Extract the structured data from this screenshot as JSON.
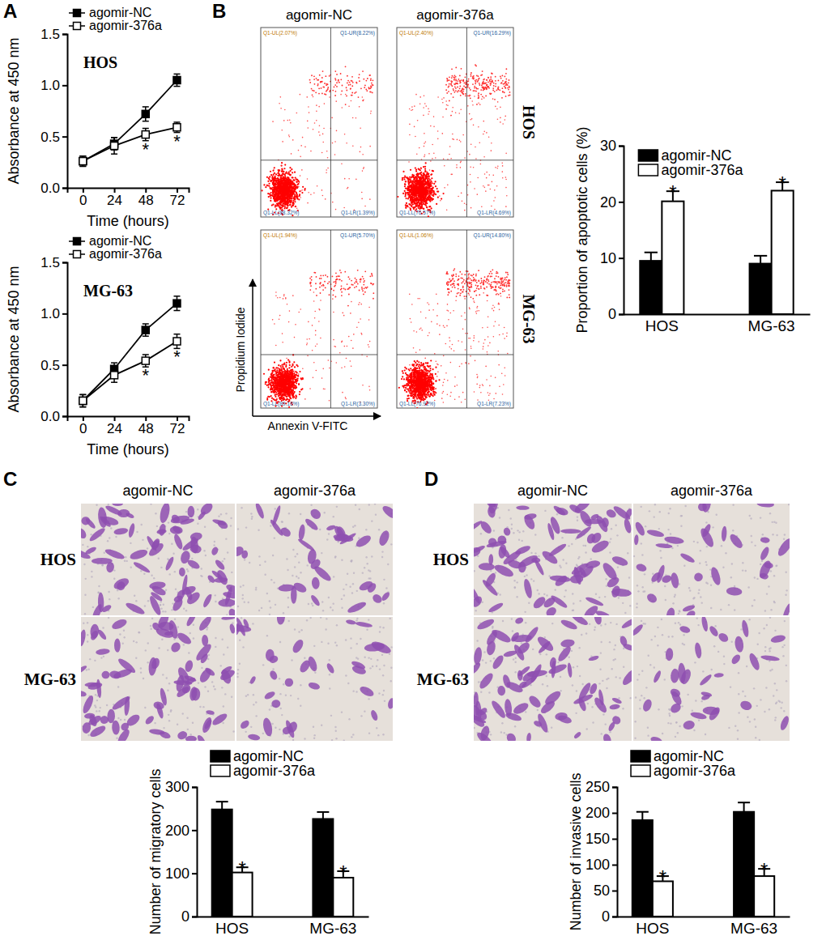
{
  "chart_data": [
    {
      "type": "line",
      "panel": "A",
      "title": "HOS",
      "x_label": "Time (hours)",
      "y_label": "Absorbance at 450 nm",
      "x": [
        0,
        24,
        48,
        72
      ],
      "xlim": [
        -12,
        81
      ],
      "xticks": [
        0,
        24,
        48,
        72
      ],
      "ylim": [
        0,
        1.5
      ],
      "yticks": [
        {
          "value": 0,
          "label": "0.0"
        },
        {
          "value": 0.5,
          "label": "0.5"
        },
        {
          "value": 1,
          "label": "1.0"
        },
        {
          "value": 1.5,
          "label": "1.5"
        }
      ],
      "legend": "upper left",
      "series": [
        {
          "name": "agomir-NC",
          "color": "#000000",
          "marker": "filled-square",
          "values": [
            0.26,
            0.43,
            0.72,
            1.05
          ],
          "errors": [
            0.05,
            0.06,
            0.07,
            0.06
          ]
        },
        {
          "name": "agomir-376a",
          "color": "#000000",
          "marker": "open-square",
          "values": [
            0.26,
            0.41,
            0.52,
            0.59
          ],
          "errors": [
            0.05,
            0.08,
            0.06,
            0.05
          ]
        }
      ],
      "annotations": [
        {
          "text": "*",
          "series": 1,
          "index": 2
        },
        {
          "text": "*",
          "series": 1,
          "index": 3
        }
      ]
    },
    {
      "type": "line",
      "title": "MG-63",
      "x_label": "Time (hours)",
      "y_label": "Absorbance at 450 nm",
      "x": [
        0,
        24,
        48,
        72
      ],
      "xlim": [
        -12,
        81
      ],
      "xticks": [
        0,
        24,
        48,
        72
      ],
      "ylim": [
        0,
        1.5
      ],
      "yticks": [
        {
          "value": 0,
          "label": "0.0"
        },
        {
          "value": 0.5,
          "label": "0.5"
        },
        {
          "value": 1,
          "label": "1.0"
        },
        {
          "value": 1.5,
          "label": "1.5"
        }
      ],
      "legend": "upper left",
      "series": [
        {
          "name": "agomir-NC",
          "color": "#000000",
          "marker": "filled-square",
          "values": [
            0.15,
            0.46,
            0.84,
            1.1
          ],
          "errors": [
            0.06,
            0.06,
            0.06,
            0.07
          ]
        },
        {
          "name": "agomir-376a",
          "color": "#000000",
          "marker": "open-square",
          "values": [
            0.15,
            0.4,
            0.54,
            0.73
          ],
          "errors": [
            0.06,
            0.07,
            0.06,
            0.07
          ]
        }
      ],
      "annotations": [
        {
          "text": "*",
          "series": 1,
          "index": 2
        },
        {
          "text": "*",
          "series": 1,
          "index": 3
        }
      ]
    },
    {
      "type": "flow_cytometry",
      "panel": "B",
      "columns": [
        "agomir-NC",
        "agomir-376a"
      ],
      "rows": [
        "HOS",
        "MG-63"
      ],
      "x_label": "Annexin V-FITC",
      "y_label": "Propidium Iodide",
      "quadrant_labels": [
        [
          [
            "Q1-UL(2.07%)",
            "Q1-UR(8.22%)",
            "Q1-LL(88.32%)",
            "Q1-LR(1.39%)"
          ],
          [
            "Q1-UL(2.40%)",
            "Q1-UR(16.29%)",
            "Q1-LL(76.57%)",
            "Q1-LR(4.69%)"
          ]
        ],
        [
          [
            "Q1-UL(1.94%)",
            "Q1-UR(5.70%)",
            "Q1-LL(89.16%)",
            "Q1-LR(3.30%)"
          ],
          [
            "Q1-UL(1.06%)",
            "Q1-UR(14.80%)",
            "Q1-LL(76.92%)",
            "Q1-LR(7.23%)"
          ]
        ]
      ]
    },
    {
      "type": "bar",
      "y_label": "Proportion of apoptotic cells (%)",
      "categories": [
        "HOS",
        "MG-63"
      ],
      "ylim": [
        0,
        30
      ],
      "yticks": [
        0,
        10,
        20,
        30
      ],
      "legend": "upper left",
      "series": [
        {
          "name": "agomir-NC",
          "color": "#000000",
          "values": [
            9.5,
            9.0
          ],
          "errors": [
            1.5,
            1.4
          ]
        },
        {
          "name": "agomir-376a",
          "color": "#ffffff",
          "values": [
            20.1,
            22.0
          ],
          "errors": [
            1.8,
            1.5
          ]
        }
      ],
      "annotations": [
        {
          "text": "*",
          "series": 1,
          "index": 0
        },
        {
          "text": "*",
          "series": 1,
          "index": 1
        }
      ]
    },
    {
      "type": "micrograph",
      "panel": "C",
      "columns": [
        "agomir-NC",
        "agomir-376a"
      ],
      "rows": [
        "HOS",
        "MG-63"
      ]
    },
    {
      "type": "bar",
      "y_label": "Number of migratory cells",
      "categories": [
        "HOS",
        "MG-63"
      ],
      "ylim": [
        0,
        300
      ],
      "yticks": [
        0,
        100,
        200,
        300
      ],
      "legend": "upper left",
      "series": [
        {
          "name": "agomir-NC",
          "color": "#000000",
          "values": [
            248,
            226
          ],
          "errors": [
            18,
            16
          ]
        },
        {
          "name": "agomir-376a",
          "color": "#ffffff",
          "values": [
            102,
            90
          ],
          "errors": [
            12,
            15
          ]
        }
      ],
      "annotations": [
        {
          "text": "*",
          "series": 1,
          "index": 0
        },
        {
          "text": "*",
          "series": 1,
          "index": 1
        }
      ]
    },
    {
      "type": "micrograph",
      "panel": "D",
      "columns": [
        "agomir-NC",
        "agomir-376a"
      ],
      "rows": [
        "HOS",
        "MG-63"
      ]
    },
    {
      "type": "bar",
      "y_label": "Number of invasive cells",
      "categories": [
        "HOS",
        "MG-63"
      ],
      "ylim": [
        0,
        250
      ],
      "yticks": [
        0,
        50,
        100,
        150,
        200,
        250
      ],
      "legend": "upper left",
      "series": [
        {
          "name": "agomir-NC",
          "color": "#000000",
          "values": [
            186,
            202
          ],
          "errors": [
            16,
            18
          ]
        },
        {
          "name": "agomir-376a",
          "color": "#ffffff",
          "values": [
            68,
            78
          ],
          "errors": [
            10,
            14
          ]
        }
      ],
      "annotations": [
        {
          "text": "*",
          "series": 1,
          "index": 0
        },
        {
          "text": "*",
          "series": 1,
          "index": 1
        }
      ]
    }
  ]
}
